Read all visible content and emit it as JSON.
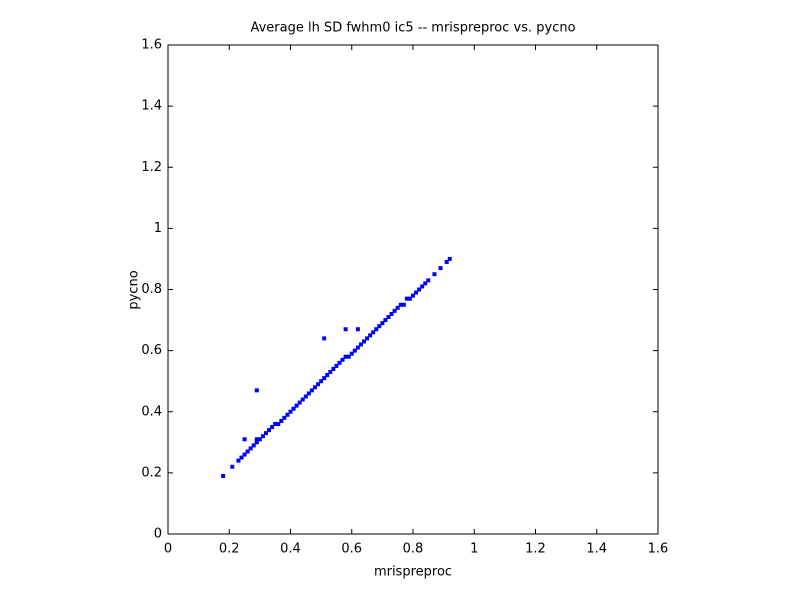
{
  "chart_data": {
    "type": "scatter",
    "title": "Average lh SD fwhm0 ic5 -- mrispreproc vs. pycno",
    "xlabel": "mrispreproc",
    "ylabel": "pycno",
    "series": [
      {
        "color": "#0000ff",
        "x": [
          0.18,
          0.21,
          0.23,
          0.24,
          0.25,
          0.26,
          0.27,
          0.28,
          0.29,
          0.29,
          0.3,
          0.31,
          0.32,
          0.33,
          0.34,
          0.35,
          0.36,
          0.37,
          0.38,
          0.39,
          0.4,
          0.41,
          0.42,
          0.43,
          0.44,
          0.45,
          0.46,
          0.47,
          0.48,
          0.49,
          0.5,
          0.51,
          0.52,
          0.53,
          0.54,
          0.55,
          0.56,
          0.57,
          0.58,
          0.59,
          0.6,
          0.61,
          0.62,
          0.63,
          0.64,
          0.65,
          0.66,
          0.67,
          0.68,
          0.69,
          0.7,
          0.71,
          0.72,
          0.73,
          0.74,
          0.75,
          0.76,
          0.77,
          0.78,
          0.79,
          0.8,
          0.81,
          0.82,
          0.83,
          0.84,
          0.85,
          0.87,
          0.89,
          0.91,
          0.92,
          0.29,
          0.51,
          0.58,
          0.25,
          0.62
        ],
        "values": [
          0.19,
          0.22,
          0.24,
          0.25,
          0.26,
          0.27,
          0.28,
          0.29,
          0.3,
          0.31,
          0.31,
          0.32,
          0.33,
          0.34,
          0.35,
          0.36,
          0.36,
          0.37,
          0.38,
          0.39,
          0.4,
          0.41,
          0.42,
          0.43,
          0.44,
          0.45,
          0.46,
          0.47,
          0.48,
          0.49,
          0.5,
          0.51,
          0.52,
          0.53,
          0.54,
          0.55,
          0.56,
          0.57,
          0.58,
          0.58,
          0.59,
          0.6,
          0.61,
          0.62,
          0.63,
          0.64,
          0.65,
          0.66,
          0.67,
          0.68,
          0.69,
          0.7,
          0.71,
          0.72,
          0.73,
          0.74,
          0.75,
          0.75,
          0.77,
          0.77,
          0.78,
          0.79,
          0.8,
          0.81,
          0.82,
          0.83,
          0.85,
          0.87,
          0.89,
          0.9,
          0.47,
          0.64,
          0.67,
          0.31,
          0.67
        ]
      }
    ],
    "xlim": [
      0,
      1.6
    ],
    "ylim": [
      0,
      1.6
    ],
    "xticks": [
      0,
      0.2,
      0.4,
      0.6,
      0.8,
      1,
      1.2,
      1.4,
      1.6
    ],
    "yticks": [
      0,
      0.2,
      0.4,
      0.6,
      0.8,
      1,
      1.2,
      1.4,
      1.6
    ]
  }
}
